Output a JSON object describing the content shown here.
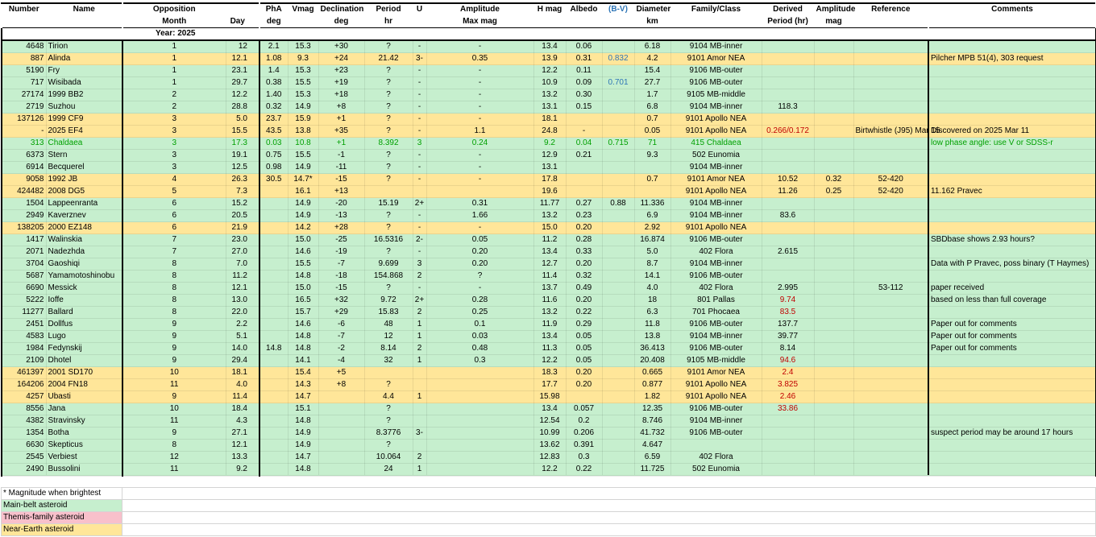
{
  "table": {
    "headers": [
      {
        "top": "Number"
      },
      {
        "top": "Name"
      },
      {
        "top": "Opposition",
        "bottom": "Month"
      },
      {
        "bottom": "Day"
      },
      {
        "top": "PhA",
        "bottom": "deg"
      },
      {
        "top": "Vmag"
      },
      {
        "top": "Declination",
        "bottom": "deg"
      },
      {
        "top": "Period",
        "bottom": "hr"
      },
      {
        "top": "U"
      },
      {
        "top": "Amplitude",
        "bottom": "Max mag"
      },
      {
        "top": "H mag"
      },
      {
        "top": "Albedo"
      },
      {
        "top": "(B-V)",
        "color": "#2e75b6"
      },
      {
        "top": "Diameter",
        "bottom": "km"
      },
      {
        "top": "Family/Class"
      },
      {
        "top": "Derived",
        "bottom": "Period (hr)"
      },
      {
        "top": "Amplitude",
        "bottom": "mag"
      },
      {
        "top": "Reference"
      },
      {
        "top": "Comments"
      }
    ],
    "year": "Year: 2025",
    "rows": [
      {
        "color": "#c6efce",
        "cells": [
          "4648",
          "Tirion",
          "1",
          "12",
          "2.1",
          "15.3",
          "+30",
          "?",
          "-",
          "-",
          "13.4",
          "0.06",
          null,
          "6.18",
          "9104 MB-inner",
          null,
          null,
          null,
          null
        ]
      },
      {
        "color": "#ffe699",
        "cells": [
          "887",
          "Alinda",
          "1",
          "12.1",
          "1.08",
          "9.3",
          "+24",
          "21.42",
          "3-",
          "0.35",
          "13.9",
          "0.31",
          {
            "text": "0.832",
            "color": "#2e75b6"
          },
          "4.2",
          "9101 Amor NEA",
          null,
          null,
          null,
          "Pilcher MPB 51(4), 303 request"
        ]
      },
      {
        "color": "#c6efce",
        "cells": [
          "5190",
          "Fry",
          "1",
          "23.1",
          "1.4",
          "15.3",
          "+23",
          "?",
          "-",
          "-",
          "12.2",
          "0.11",
          null,
          "15.4",
          "9106 MB-outer",
          null,
          null,
          null,
          null
        ]
      },
      {
        "color": "#c6efce",
        "cells": [
          "717",
          "Wisibada",
          "1",
          "29.7",
          "0.38",
          "15.5",
          "+19",
          "?",
          "-",
          "-",
          "10.9",
          "0.09",
          {
            "text": "0.701",
            "color": "#2e75b6"
          },
          "27.7",
          "9106 MB-outer",
          null,
          null,
          null,
          null
        ]
      },
      {
        "color": "#c6efce",
        "cells": [
          "27174",
          "1999 BB2",
          "2",
          "12.2",
          "1.40",
          "15.3",
          "+18",
          "?",
          "-",
          "-",
          "13.2",
          "0.30",
          null,
          "1.7",
          "9105 MB-middle",
          null,
          null,
          null,
          null
        ]
      },
      {
        "color": "#c6efce",
        "cells": [
          "2719",
          "Suzhou",
          "2",
          "28.8",
          "0.32",
          "14.9",
          "+8",
          "?",
          "-",
          "-",
          "13.1",
          "0.15",
          null,
          "6.8",
          "9104 MB-inner",
          "118.3",
          null,
          null,
          null
        ]
      },
      {
        "color": "#ffe699",
        "cells": [
          "137126",
          "1999 CF9",
          "3",
          "5.0",
          "23.7",
          "15.9",
          "+1",
          "?",
          "-",
          "-",
          "18.1",
          null,
          null,
          "0.7",
          "9101 Apollo NEA",
          null,
          null,
          null,
          null
        ]
      },
      {
        "color": "#ffe699",
        "cells": [
          "-",
          "2025 EF4",
          "3",
          "15.5",
          "43.5",
          "13.8",
          "+35",
          "?",
          "-",
          "1.1",
          "24.8",
          "-",
          null,
          "0.05",
          "9101 Apollo NEA",
          {
            "text": "0.266/0.172",
            "color": "#c00000"
          },
          null,
          "Birtwhistle (J95) Mar 15",
          "Discovered on 2025 Mar 11"
        ]
      },
      {
        "color": "#c6efce",
        "text_color": "#00a000",
        "cells": [
          "313",
          "Chaldaea",
          "3",
          "17.3",
          "0.03",
          "10.8",
          "+1",
          "8.392",
          "3",
          "0.24",
          "9.2",
          "0.04",
          "0.715",
          "71",
          "415 Chaldaea",
          null,
          null,
          null,
          "low phase angle: use V or SDSS-r"
        ]
      },
      {
        "color": "#c6efce",
        "cells": [
          "6373",
          "Stern",
          "3",
          "19.1",
          "0.75",
          "15.5",
          "-1",
          "?",
          "-",
          "-",
          "12.9",
          "0.21",
          null,
          "9.3",
          "502 Eunomia",
          null,
          null,
          null,
          null
        ]
      },
      {
        "color": "#c6efce",
        "cells": [
          "6914",
          "Becquerel",
          "3",
          "12.5",
          "0.98",
          "14.9",
          "-11",
          "?",
          "-",
          "-",
          "13.1",
          null,
          null,
          null,
          "9104 MB-inner",
          null,
          null,
          null,
          null
        ]
      },
      {
        "color": "#ffe699",
        "cells": [
          "9058",
          "1992 JB",
          "4",
          "26.3",
          "30.5",
          "14.7*",
          "-15",
          "?",
          "-",
          "-",
          "17.8",
          null,
          null,
          "0.7",
          "9101 Amor NEA",
          "10.52",
          "0.32",
          "52-420",
          null
        ]
      },
      {
        "color": "#ffe699",
        "cells": [
          "424482",
          "2008 DG5",
          "5",
          "7.3",
          null,
          "16.1",
          "+13",
          null,
          null,
          null,
          "19.6",
          null,
          null,
          null,
          "9101 Apollo NEA",
          "11.26",
          "0.25",
          "52-420",
          "11.162 Pravec"
        ]
      },
      {
        "color": "#c6efce",
        "cells": [
          "1504",
          "Lappeenranta",
          "6",
          "15.2",
          null,
          "14.9",
          "-20",
          "15.19",
          "2+",
          "0.31",
          "11.77",
          "0.27",
          "0.88",
          "11.336",
          "9104 MB-inner",
          null,
          null,
          null,
          null
        ]
      },
      {
        "color": "#c6efce",
        "cells": [
          "2949",
          "Kaverznev",
          "6",
          "20.5",
          null,
          "14.9",
          "-13",
          "?",
          "-",
          "1.66",
          "13.2",
          "0.23",
          null,
          "6.9",
          "9104 MB-inner",
          "83.6",
          null,
          null,
          null
        ]
      },
      {
        "color": "#ffe699",
        "cells": [
          "138205",
          "2000 EZ148",
          "6",
          "21.9",
          null,
          "14.2",
          "+28",
          "?",
          "-",
          "-",
          "15.0",
          "0.20",
          null,
          "2.92",
          "9101 Apollo NEA",
          null,
          null,
          null,
          null
        ]
      },
      {
        "color": "#c6efce",
        "cells": [
          "1417",
          "Walinskia",
          "7",
          "23.0",
          null,
          "15.0",
          "-25",
          "16.5316",
          "2-",
          "0.05",
          "11.2",
          "0.28",
          null,
          "16.874",
          "9106 MB-outer",
          null,
          null,
          null,
          "SBDbase shows 2.93 hours?"
        ]
      },
      {
        "color": "#c6efce",
        "cells": [
          "2071",
          "Nadezhda",
          "7",
          "27.0",
          null,
          "14.6",
          "-19",
          "?",
          "-",
          "0.20",
          "13.4",
          "0.33",
          null,
          "5.0",
          "402 Flora",
          "2.615",
          null,
          null,
          null
        ]
      },
      {
        "color": "#c6efce",
        "cells": [
          "3704",
          "Gaoshiqi",
          "8",
          "7.0",
          null,
          "15.5",
          "-7",
          "9.699",
          "3",
          "0.20",
          "12.7",
          "0.20",
          null,
          "8.7",
          "9104 MB-inner",
          null,
          null,
          null,
          "Data with P Pravec, poss binary (T Haymes)"
        ]
      },
      {
        "color": "#c6efce",
        "cells": [
          "5687",
          "Yamamotoshinobu",
          "8",
          "11.2",
          null,
          "14.8",
          "-18",
          "154.868",
          "2",
          "?",
          "11.4",
          "0.32",
          null,
          "14.1",
          "9106 MB-outer",
          null,
          null,
          null,
          null
        ]
      },
      {
        "color": "#c6efce",
        "cells": [
          "6690",
          "Messick",
          "8",
          "12.1",
          null,
          "15.0",
          "-15",
          "?",
          "-",
          "-",
          "13.7",
          "0.49",
          null,
          "4.0",
          "402 Flora",
          "2.995",
          null,
          "53-112",
          "paper received"
        ]
      },
      {
        "color": "#c6efce",
        "cells": [
          "5222",
          "Ioffe",
          "8",
          "13.0",
          null,
          "16.5",
          "+32",
          "9.72",
          "2+",
          "0.28",
          "11.6",
          "0.20",
          null,
          "18",
          "801 Pallas",
          {
            "text": "9.74",
            "color": "#c00000"
          },
          null,
          null,
          "based on less than full coverage"
        ]
      },
      {
        "color": "#c6efce",
        "cells": [
          "11277",
          "Ballard",
          "8",
          "22.0",
          null,
          "15.7",
          "+29",
          "15.83",
          "2",
          "0.25",
          "13.2",
          "0.22",
          null,
          "6.3",
          "701 Phocaea",
          {
            "text": "83.5",
            "color": "#c00000"
          },
          null,
          null,
          null
        ]
      },
      {
        "color": "#c6efce",
        "cells": [
          "2451",
          "Dollfus",
          "9",
          "2.2",
          null,
          "14.6",
          "-6",
          "48",
          "1",
          "0.1",
          "11.9",
          "0.29",
          null,
          "11.8",
          "9106 MB-outer",
          "137.7",
          null,
          null,
          "Paper out for comments"
        ]
      },
      {
        "color": "#c6efce",
        "cells": [
          "4583",
          "Lugo",
          "9",
          "5.1",
          null,
          "14.8",
          "-7",
          "12",
          "1",
          "0.03",
          "13.4",
          "0.05",
          null,
          "13.8",
          "9104 MB-inner",
          "39.77",
          null,
          null,
          "Paper out for comments"
        ]
      },
      {
        "color": "#c6efce",
        "cells": [
          "1984",
          "Fedynskij",
          "9",
          "14.0",
          "14.8",
          "14.8",
          "-2",
          "8.14",
          "2",
          "0.48",
          "11.3",
          "0.05",
          null,
          "36.413",
          "9106 MB-outer",
          "8.14",
          null,
          null,
          "Paper out for comments"
        ]
      },
      {
        "color": "#c6efce",
        "cells": [
          "2109",
          "Dhotel",
          "9",
          "29.4",
          null,
          "14.1",
          "-4",
          "32",
          "1",
          "0.3",
          "12.2",
          "0.05",
          null,
          "20.408",
          "9105 MB-middle",
          {
            "text": "94.6",
            "color": "#c00000"
          },
          null,
          null,
          null
        ]
      },
      {
        "color": "#ffe699",
        "cells": [
          "461397",
          "2001 SD170",
          "10",
          "18.1",
          null,
          "15.4",
          "+5",
          null,
          null,
          null,
          "18.3",
          "0.20",
          null,
          "0.665",
          "9101 Amor NEA",
          {
            "text": "2.4",
            "color": "#c00000"
          },
          null,
          null,
          null
        ]
      },
      {
        "color": "#ffe699",
        "cells": [
          "164206",
          "2004 FN18",
          "11",
          "4.0",
          null,
          "14.3",
          "+8",
          "?",
          null,
          null,
          "17.7",
          "0.20",
          null,
          "0.877",
          "9101 Apollo NEA",
          {
            "text": "3.825",
            "color": "#c00000"
          },
          null,
          null,
          null
        ]
      },
      {
        "color": "#ffe699",
        "cells": [
          "4257",
          "Ubasti",
          "9",
          "11.4",
          null,
          "14.7",
          null,
          "4.4",
          "1",
          null,
          "15.98",
          null,
          null,
          "1.82",
          "9101 Apollo NEA",
          {
            "text": "2.46",
            "color": "#c00000"
          },
          null,
          null,
          null
        ]
      },
      {
        "color": "#c6efce",
        "cells": [
          "8556",
          "Jana",
          "10",
          "18.4",
          null,
          "15.1",
          null,
          "?",
          null,
          null,
          "13.4",
          "0.057",
          null,
          "12.35",
          "9106 MB-outer",
          {
            "text": "33.86",
            "color": "#c00000"
          },
          null,
          null,
          null
        ]
      },
      {
        "color": "#c6efce",
        "cells": [
          "4382",
          "Stravinsky",
          "11",
          "4.3",
          null,
          "14.8",
          null,
          "?",
          null,
          null,
          "12.54",
          "0.2",
          null,
          "8.746",
          "9104 MB-inner",
          null,
          null,
          null,
          null
        ]
      },
      {
        "color": "#c6efce",
        "cells": [
          "1354",
          "Botha",
          "9",
          "27.1",
          null,
          "14.9",
          null,
          "8.3776",
          "3-",
          null,
          "10.99",
          "0.206",
          null,
          "41.732",
          "9106 MB-outer",
          null,
          null,
          null,
          "suspect period may be around 17 hours"
        ]
      },
      {
        "color": "#c6efce",
        "cells": [
          "6630",
          "Skepticus",
          "8",
          "12.1",
          null,
          "14.9",
          null,
          "?",
          null,
          null,
          "13.62",
          "0.391",
          null,
          "4.647",
          null,
          null,
          null,
          null,
          null
        ]
      },
      {
        "color": "#c6efce",
        "cells": [
          "2545",
          "Verbiest",
          "12",
          "13.3",
          null,
          "14.7",
          null,
          "10.064",
          "2",
          null,
          "12.83",
          "0.3",
          null,
          "6.59",
          "402 Flora",
          null,
          null,
          null,
          null
        ]
      },
      {
        "color": "#c6efce",
        "cells": [
          "2490",
          "Bussolini",
          "11",
          "9.2",
          null,
          "14.8",
          null,
          "24",
          "1",
          null,
          "12.2",
          "0.22",
          null,
          "11.725",
          "502 Eunomia",
          null,
          null,
          null,
          null
        ]
      }
    ]
  },
  "footnote": "* Magnitude when brightest",
  "legend": [
    {
      "text": "Main-belt asteroid",
      "color": "#c6efce"
    },
    {
      "text": "Themis-family asteroid",
      "color": "#f8c0cb"
    },
    {
      "text": "Near-Earth asteroid",
      "color": "#ffe699"
    }
  ]
}
